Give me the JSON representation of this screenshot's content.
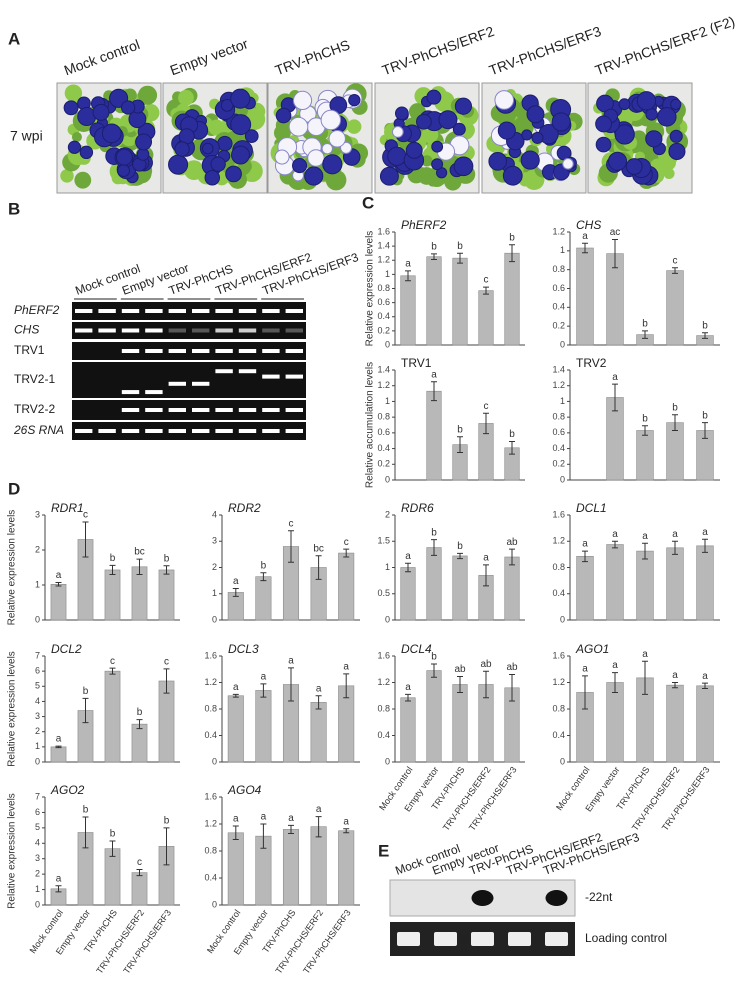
{
  "panels": {
    "a": "A",
    "b": "B",
    "c": "C",
    "d": "D",
    "e": "E"
  },
  "panel_a": {
    "label": "7 wpi",
    "columns": [
      "Mock control",
      "Empty vector",
      "TRV-PhCHS",
      "TRV-PhCHS/ERF2",
      "TRV-PhCHS/ERF3",
      "TRV-PhCHS/ERF2 (F2)"
    ]
  },
  "panel_b": {
    "columns": [
      "Mock control",
      "Empty vector",
      "TRV-PhCHS",
      "TRV-PhCHS/ERF2",
      "TRV-PhCHS/ERF3"
    ],
    "rows": [
      "PhERF2",
      "CHS",
      "TRV1",
      "TRV2-1",
      "TRV2-2",
      "26S RNA"
    ]
  },
  "panel_e": {
    "columns": [
      "Mock control",
      "Empty vector",
      "TRV-PhCHS",
      "TRV-PhCHS/ERF2",
      "TRV-PhCHS/ERF3"
    ],
    "band_label": "-22nt",
    "loading_label": "Loading control"
  },
  "chart_data": [
    {
      "type": "bar",
      "title": "PhERF2",
      "title_italic": true,
      "ylabel": "Relative expression levels",
      "color": "#b8b8b8",
      "categories": [
        null,
        null,
        null,
        null,
        null
      ],
      "values": [
        0.98,
        1.25,
        1.23,
        0.77,
        1.3
      ],
      "errors": [
        0.07,
        0.04,
        0.07,
        0.05,
        0.12
      ],
      "letters": [
        "a",
        "b",
        "b",
        "c",
        "b"
      ],
      "ylim": [
        0,
        1.6
      ],
      "yticks": [
        0,
        0.2,
        0.4,
        0.6,
        0.8,
        1,
        1.2,
        1.4,
        1.6
      ]
    },
    {
      "type": "bar",
      "title": "CHS",
      "title_italic": true,
      "color": "#b8b8b8",
      "categories": [
        null,
        null,
        null,
        null,
        null
      ],
      "values": [
        1.03,
        0.97,
        0.11,
        0.79,
        0.1
      ],
      "errors": [
        0.05,
        0.15,
        0.04,
        0.03,
        0.03
      ],
      "letters": [
        "a",
        "ac",
        "b",
        "c",
        "b"
      ],
      "ylim": [
        0,
        1.2
      ],
      "yticks": [
        0,
        0.2,
        0.4,
        0.6,
        0.8,
        1,
        1.2
      ]
    },
    {
      "type": "bar",
      "title": "TRV1",
      "title_italic": false,
      "ylabel": "Relative accumulation levels",
      "color": "#b8b8b8",
      "categories": [
        null,
        null,
        null,
        null,
        null
      ],
      "values": [
        null,
        1.13,
        0.45,
        0.72,
        0.41
      ],
      "errors": [
        null,
        0.12,
        0.1,
        0.13,
        0.08
      ],
      "letters": [
        null,
        "a",
        "b",
        "c",
        "b"
      ],
      "ylim": [
        0,
        1.4
      ],
      "yticks": [
        0,
        0.2,
        0.4,
        0.6,
        0.8,
        1,
        1.2,
        1.4
      ]
    },
    {
      "type": "bar",
      "title": "TRV2",
      "title_italic": false,
      "color": "#b8b8b8",
      "categories": [
        null,
        null,
        null,
        null,
        null
      ],
      "values": [
        null,
        1.05,
        0.63,
        0.73,
        0.63
      ],
      "errors": [
        null,
        0.17,
        0.06,
        0.1,
        0.1
      ],
      "letters": [
        null,
        "a",
        "b",
        "b",
        "b"
      ],
      "ylim": [
        0,
        1.4
      ],
      "yticks": [
        0,
        0.2,
        0.4,
        0.6,
        0.8,
        1,
        1.2,
        1.4
      ]
    },
    {
      "type": "bar",
      "title": "RDR1",
      "title_italic": true,
      "ylabel": "Relative expression levels",
      "color": "#b8b8b8",
      "categories": [
        null,
        null,
        null,
        null,
        null
      ],
      "values": [
        1.02,
        2.3,
        1.43,
        1.52,
        1.43
      ],
      "errors": [
        0.05,
        0.5,
        0.13,
        0.22,
        0.12
      ],
      "letters": [
        "a",
        "c",
        "b",
        "bc",
        "b"
      ],
      "ylim": [
        0,
        3
      ],
      "yticks": [
        0,
        1,
        2,
        3
      ]
    },
    {
      "type": "bar",
      "title": "RDR2",
      "title_italic": true,
      "color": "#b8b8b8",
      "categories": [
        null,
        null,
        null,
        null,
        null
      ],
      "values": [
        1.05,
        1.65,
        2.8,
        2.0,
        2.55
      ],
      "errors": [
        0.15,
        0.15,
        0.6,
        0.45,
        0.15
      ],
      "letters": [
        "a",
        "b",
        "c",
        "bc",
        "c"
      ],
      "ylim": [
        0,
        4
      ],
      "yticks": [
        0,
        1,
        2,
        3,
        4
      ]
    },
    {
      "type": "bar",
      "title": "RDR6",
      "title_italic": true,
      "color": "#b8b8b8",
      "categories": [
        null,
        null,
        null,
        null,
        null
      ],
      "values": [
        1.0,
        1.38,
        1.22,
        0.85,
        1.2
      ],
      "errors": [
        0.08,
        0.15,
        0.05,
        0.2,
        0.15
      ],
      "letters": [
        "a",
        "b",
        "b",
        "a",
        "ab"
      ],
      "ylim": [
        0,
        2
      ],
      "yticks": [
        0,
        0.5,
        1,
        1.5,
        2
      ]
    },
    {
      "type": "bar",
      "title": "DCL1",
      "title_italic": true,
      "color": "#b8b8b8",
      "categories": [
        null,
        null,
        null,
        null,
        null
      ],
      "values": [
        0.97,
        1.15,
        1.05,
        1.1,
        1.13
      ],
      "errors": [
        0.08,
        0.05,
        0.12,
        0.1,
        0.1
      ],
      "letters": [
        "a",
        "a",
        "a",
        "a",
        "a"
      ],
      "ylim": [
        0,
        1.6
      ],
      "yticks": [
        0,
        0.4,
        0.8,
        1.2,
        1.6
      ]
    },
    {
      "type": "bar",
      "title": "DCL2",
      "title_italic": true,
      "ylabel": "Relative expression levels",
      "color": "#b8b8b8",
      "categories": [
        null,
        null,
        null,
        null,
        null
      ],
      "values": [
        1.0,
        3.4,
        6.0,
        2.5,
        5.35
      ],
      "errors": [
        0.05,
        0.8,
        0.2,
        0.3,
        0.8
      ],
      "letters": [
        "a",
        "b",
        "c",
        "b",
        "c"
      ],
      "ylim": [
        0,
        7
      ],
      "yticks": [
        0,
        1,
        2,
        3,
        4,
        5,
        6,
        7
      ]
    },
    {
      "type": "bar",
      "title": "DCL3",
      "title_italic": true,
      "color": "#b8b8b8",
      "categories": [
        null,
        null,
        null,
        null,
        null
      ],
      "values": [
        1.0,
        1.08,
        1.17,
        0.9,
        1.15
      ],
      "errors": [
        0.02,
        0.1,
        0.25,
        0.1,
        0.18
      ],
      "letters": [
        "a",
        "a",
        "a",
        "a",
        "a"
      ],
      "ylim": [
        0,
        1.6
      ],
      "yticks": [
        0,
        0.4,
        0.8,
        1.2,
        1.6
      ]
    },
    {
      "type": "bar",
      "title": "DCL4",
      "title_italic": true,
      "color": "#b8b8b8",
      "categories": [
        "Mock control",
        "Empty vector",
        "TRV-PhCHS",
        "TRV-PhCHS/ERF2",
        "TRV-PhCHS/ERF3"
      ],
      "values": [
        0.97,
        1.38,
        1.17,
        1.17,
        1.12
      ],
      "errors": [
        0.05,
        0.1,
        0.12,
        0.2,
        0.2
      ],
      "letters": [
        "a",
        "b",
        "ab",
        "ab",
        "ab"
      ],
      "ylim": [
        0,
        1.6
      ],
      "yticks": [
        0,
        0.4,
        0.8,
        1.2,
        1.6
      ]
    },
    {
      "type": "bar",
      "title": "AGO1",
      "title_italic": true,
      "color": "#b8b8b8",
      "categories": [
        "Mock control",
        "Empty vector",
        "TRV-PhCHS",
        "TRV-PhCHS/ERF2",
        "TRV-PhCHS/ERF3"
      ],
      "values": [
        1.05,
        1.2,
        1.27,
        1.16,
        1.15
      ],
      "errors": [
        0.25,
        0.15,
        0.25,
        0.04,
        0.04
      ],
      "letters": [
        "a",
        "a",
        "a",
        "a",
        "a"
      ],
      "ylim": [
        0,
        1.6
      ],
      "yticks": [
        0,
        0.4,
        0.8,
        1.2,
        1.6
      ]
    },
    {
      "type": "bar",
      "title": "AGO2",
      "title_italic": true,
      "ylabel": "Relative expression levels",
      "color": "#b8b8b8",
      "categories": [
        "Mock control",
        "Empty vector",
        "TRV-PhCHS",
        "TRV-PhCHS/ERF2",
        "TRV-PhCHS/ERF3"
      ],
      "values": [
        1.05,
        4.7,
        3.65,
        2.1,
        3.8
      ],
      "errors": [
        0.2,
        1.0,
        0.5,
        0.2,
        1.2
      ],
      "letters": [
        "a",
        "b",
        "b",
        "c",
        "b"
      ],
      "ylim": [
        0,
        7
      ],
      "yticks": [
        0,
        1,
        2,
        3,
        4,
        5,
        6,
        7
      ]
    },
    {
      "type": "bar",
      "title": "AGO4",
      "title_italic": true,
      "color": "#b8b8b8",
      "categories": [
        "Mock control",
        "Empty vector",
        "TRV-PhCHS",
        "TRV-PhCHS/ERF2",
        "TRV-PhCHS/ERF3"
      ],
      "values": [
        1.07,
        1.02,
        1.12,
        1.16,
        1.1
      ],
      "errors": [
        0.1,
        0.18,
        0.06,
        0.15,
        0.03
      ],
      "letters": [
        "a",
        "a",
        "a",
        "a",
        "a"
      ],
      "ylim": [
        0,
        1.6
      ],
      "yticks": [
        0,
        0.4,
        0.8,
        1.2,
        1.6
      ]
    }
  ]
}
